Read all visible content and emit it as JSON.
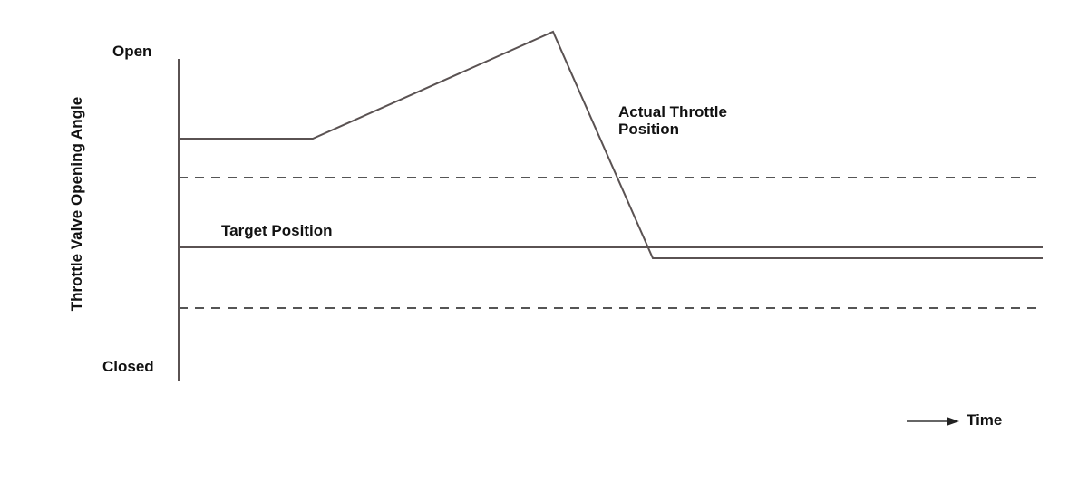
{
  "diagram": {
    "y_axis_label": "Throttle Valve Opening Angle",
    "y_top_label": "Open",
    "y_bottom_label": "Closed",
    "time_label": "Time",
    "actual_label_line1": "Actual Throttle",
    "actual_label_line2": "Position",
    "target_label": "Target Position",
    "line_color": "#5a5252",
    "dash_color": "#555555"
  }
}
